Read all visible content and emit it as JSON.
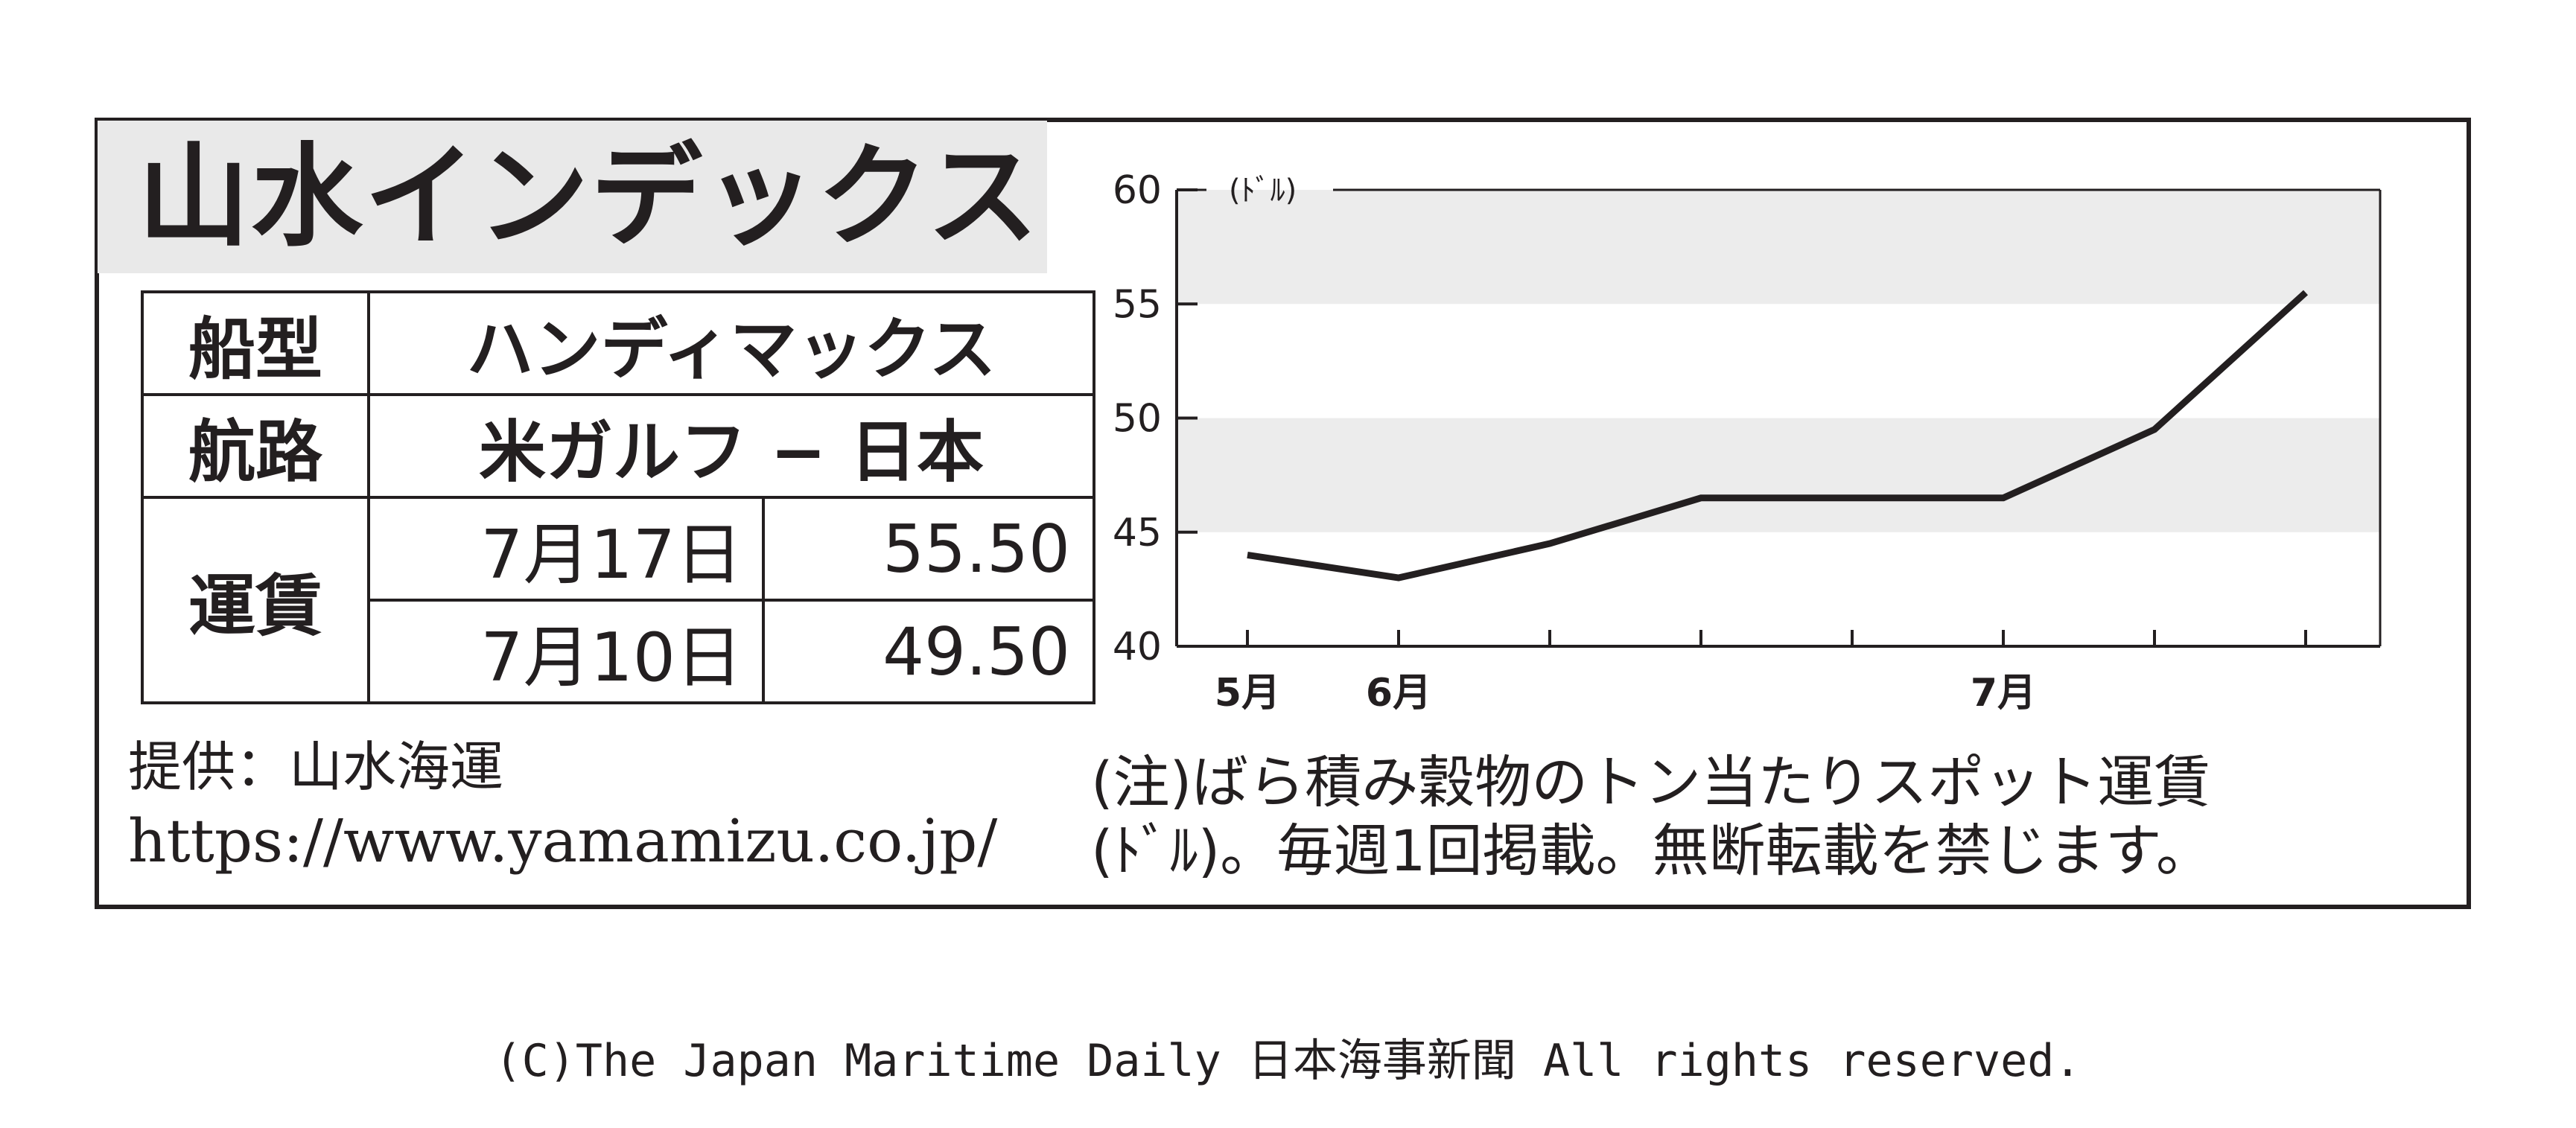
{
  "title": "山水インデックス",
  "table": {
    "ship_type_label": "船型",
    "ship_type_value": "ハンディマックス",
    "route_label": "航路",
    "route_value": "米ガルフ − 日本",
    "freight_label": "運賃",
    "rows": [
      {
        "date": "7月17日",
        "value": "55.50"
      },
      {
        "date": "7月10日",
        "value": "49.50"
      }
    ]
  },
  "provider": "提供：山水海運",
  "url": "https://www.yamamizu.co.jp/",
  "note_line1": "(注)ばら積み穀物のトン当たりスポット運賃",
  "note_line2": "(ﾄﾞﾙ)。毎週1回掲載。無断転載を禁じます。",
  "copyright": "(C)The Japan Maritime Daily 日本海事新聞 All rights reserved.",
  "colors": {
    "line": "#231f20",
    "band": "#ececec",
    "frame": "#231f20",
    "title_bg": "#e9e9e9"
  },
  "chart_data": {
    "type": "line",
    "unit_label": "(ﾄﾞﾙ)",
    "ylim": [
      40,
      60
    ],
    "yticks": [
      40,
      45,
      50,
      55,
      60
    ],
    "x_index_range": [
      0,
      7.5
    ],
    "x_labels": [
      {
        "index": 0,
        "label": "5月"
      },
      {
        "index": 1,
        "label": "6月"
      },
      {
        "index": 5,
        "label": "7月"
      }
    ],
    "series": [
      {
        "values": [
          44.0,
          43.0,
          44.5,
          46.5,
          46.5,
          46.5,
          49.5,
          55.5
        ]
      }
    ],
    "grid": "shaded horizontal bands 45-50 and 55-60"
  }
}
